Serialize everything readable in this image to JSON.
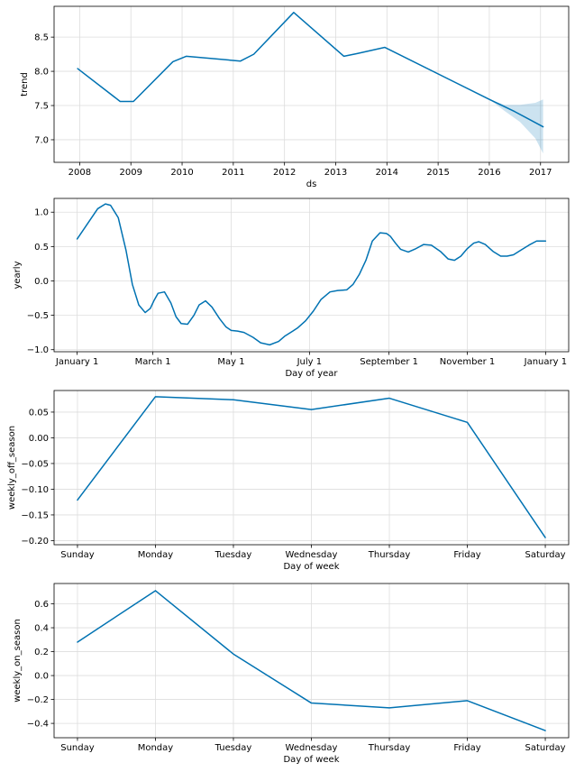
{
  "chart_data": [
    {
      "type": "line",
      "xlabel": "ds",
      "ylabel": "trend",
      "xlim": [
        2007.5,
        2017.55
      ],
      "ylim": [
        6.67,
        8.95
      ],
      "x_ticks": [
        2008,
        2009,
        2010,
        2011,
        2012,
        2013,
        2014,
        2015,
        2016,
        2017
      ],
      "x_tick_labels": [
        "2008",
        "2009",
        "2010",
        "2011",
        "2012",
        "2013",
        "2014",
        "2015",
        "2016",
        "2017"
      ],
      "y_ticks": [
        7.0,
        7.5,
        8.0,
        8.5
      ],
      "y_tick_labels": [
        "7.0",
        "7.5",
        "8.0",
        "8.5"
      ],
      "color": "#0072B2",
      "band_color": "#0072B2",
      "grid": true,
      "series": [
        {
          "name": "trend",
          "x": [
            2007.96,
            2008.79,
            2009.05,
            2009.82,
            2010.08,
            2011.14,
            2011.4,
            2012.18,
            2013.16,
            2013.42,
            2013.96,
            2016.0,
            2016.5,
            2017.05
          ],
          "y": [
            8.04,
            7.56,
            7.56,
            8.14,
            8.22,
            8.15,
            8.25,
            8.86,
            8.22,
            8.26,
            8.35,
            7.59,
            7.41,
            7.19
          ]
        }
      ],
      "uncertainty": {
        "x": [
          2016.0,
          2016.3,
          2016.6,
          2016.9,
          2017.05
        ],
        "upper": [
          7.59,
          7.51,
          7.51,
          7.54,
          7.59
        ],
        "lower": [
          7.59,
          7.42,
          7.26,
          7.02,
          6.8
        ]
      }
    },
    {
      "type": "line",
      "xlabel": "Day of year",
      "ylabel": "yearly",
      "xlim": [
        -18,
        383
      ],
      "ylim": [
        -1.03,
        1.2
      ],
      "x_ticks": [
        0,
        59,
        120,
        181,
        243,
        304,
        365
      ],
      "x_tick_labels": [
        "January 1",
        "March 1",
        "May 1",
        "July 1",
        "September 1",
        "November 1",
        "January 1"
      ],
      "y_ticks": [
        -1.0,
        -0.5,
        0.0,
        0.5,
        1.0
      ],
      "y_tick_labels": [
        "−1.0",
        "−0.5",
        "0.0",
        "0.5",
        "1.0"
      ],
      "color": "#0072B2",
      "grid": true,
      "series": [
        {
          "name": "yearly",
          "x": [
            0,
            8,
            16,
            22,
            26,
            32,
            38,
            43,
            48,
            53,
            57,
            60,
            63,
            68,
            73,
            77,
            81,
            86,
            91,
            95,
            100,
            105,
            111,
            116,
            120,
            125,
            130,
            137,
            143,
            150,
            157,
            162,
            168,
            172,
            178,
            184,
            190,
            197,
            203,
            210,
            215,
            220,
            225,
            230,
            236,
            241,
            244,
            248,
            252,
            258,
            264,
            270,
            276,
            283,
            289,
            294,
            299,
            304,
            309,
            313,
            318,
            324,
            330,
            335,
            340,
            346,
            352,
            358,
            365
          ],
          "y": [
            0.61,
            0.83,
            1.05,
            1.12,
            1.1,
            0.92,
            0.45,
            -0.05,
            -0.35,
            -0.46,
            -0.4,
            -0.28,
            -0.18,
            -0.16,
            -0.32,
            -0.52,
            -0.62,
            -0.63,
            -0.5,
            -0.35,
            -0.29,
            -0.38,
            -0.55,
            -0.67,
            -0.72,
            -0.73,
            -0.75,
            -0.82,
            -0.9,
            -0.93,
            -0.88,
            -0.8,
            -0.73,
            -0.68,
            -0.58,
            -0.44,
            -0.27,
            -0.16,
            -0.14,
            -0.13,
            -0.05,
            0.1,
            0.3,
            0.58,
            0.7,
            0.69,
            0.65,
            0.55,
            0.46,
            0.42,
            0.47,
            0.53,
            0.52,
            0.43,
            0.32,
            0.3,
            0.36,
            0.47,
            0.55,
            0.57,
            0.53,
            0.43,
            0.36,
            0.36,
            0.38,
            0.45,
            0.52,
            0.58,
            0.58
          ]
        }
      ]
    },
    {
      "type": "line",
      "xlabel": "Day of week",
      "ylabel": "weekly_off_season",
      "xlim": [
        -0.3,
        6.3
      ],
      "ylim": [
        -0.208,
        0.092
      ],
      "x_ticks": [
        0,
        1,
        2,
        3,
        4,
        5,
        6
      ],
      "x_tick_labels": [
        "Sunday",
        "Monday",
        "Tuesday",
        "Wednesday",
        "Thursday",
        "Friday",
        "Saturday"
      ],
      "y_ticks": [
        -0.2,
        -0.15,
        -0.1,
        -0.05,
        0.0,
        0.05
      ],
      "y_tick_labels": [
        "−0.20",
        "−0.15",
        "−0.10",
        "−0.05",
        "0.00",
        "0.05"
      ],
      "color": "#0072B2",
      "grid": true,
      "series": [
        {
          "name": "weekly_off_season",
          "x": [
            0,
            1,
            2,
            3,
            4,
            5,
            6
          ],
          "y": [
            -0.121,
            0.08,
            0.074,
            0.055,
            0.077,
            0.03,
            -0.194
          ]
        }
      ]
    },
    {
      "type": "line",
      "xlabel": "Day of week",
      "ylabel": "weekly_on_season",
      "xlim": [
        -0.3,
        6.3
      ],
      "ylim": [
        -0.52,
        0.77
      ],
      "x_ticks": [
        0,
        1,
        2,
        3,
        4,
        5,
        6
      ],
      "x_tick_labels": [
        "Sunday",
        "Monday",
        "Tuesday",
        "Wednesday",
        "Thursday",
        "Friday",
        "Saturday"
      ],
      "y_ticks": [
        -0.4,
        -0.2,
        0.0,
        0.2,
        0.4,
        0.6
      ],
      "y_tick_labels": [
        "−0.4",
        "−0.2",
        "0.0",
        "0.2",
        "0.4",
        "0.6"
      ],
      "color": "#0072B2",
      "grid": true,
      "series": [
        {
          "name": "weekly_on_season",
          "x": [
            0,
            1,
            2,
            3,
            4,
            5,
            6
          ],
          "y": [
            0.28,
            0.71,
            0.18,
            -0.23,
            -0.27,
            -0.21,
            -0.46
          ]
        }
      ]
    }
  ]
}
